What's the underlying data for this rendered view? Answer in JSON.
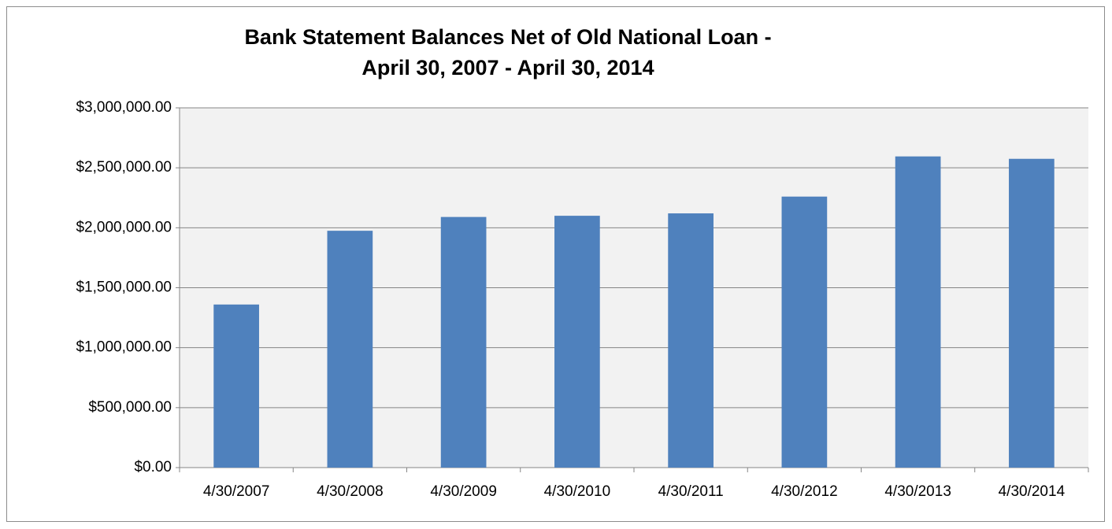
{
  "chart_data": {
    "type": "bar",
    "title": [
      "Bank Statement Balances Net of Old National Loan -",
      "April 30, 2007 - April 30, 2014"
    ],
    "categories": [
      "4/30/2007",
      "4/30/2008",
      "4/30/2009",
      "4/30/2010",
      "4/30/2011",
      "4/30/2012",
      "4/30/2013",
      "4/30/2014"
    ],
    "values": [
      1360000,
      1975000,
      2090000,
      2100000,
      2120000,
      2260000,
      2595000,
      2575000
    ],
    "color": "#4f81bd",
    "ylim": [
      0,
      3000000
    ],
    "yticks": [
      {
        "value": 0,
        "label": "$0.00"
      },
      {
        "value": 500000,
        "label": "$500,000.00"
      },
      {
        "value": 1000000,
        "label": "$1,000,000.00"
      },
      {
        "value": 1500000,
        "label": "$1,500,000.00"
      },
      {
        "value": 2000000,
        "label": "$2,000,000.00"
      },
      {
        "value": 2500000,
        "label": "$2,500,000.00"
      },
      {
        "value": 3000000,
        "label": "$3,000,000.00"
      }
    ],
    "grid": true
  }
}
